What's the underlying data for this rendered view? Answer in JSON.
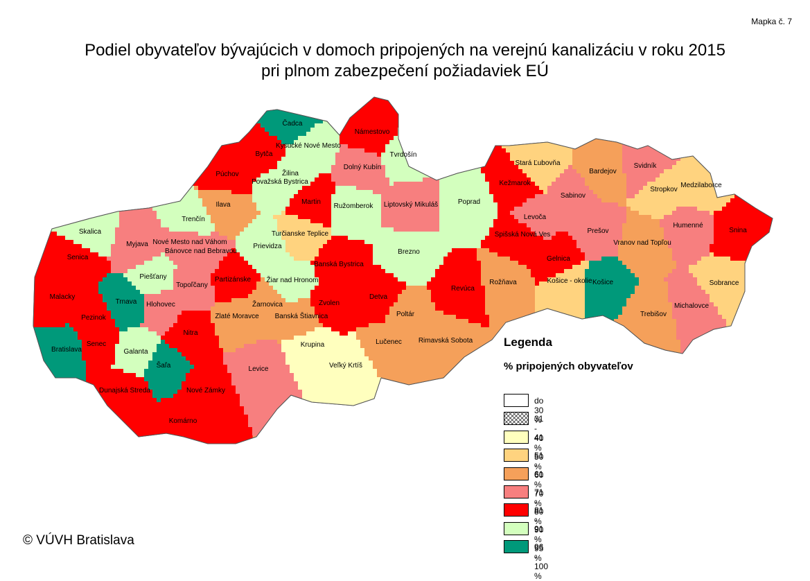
{
  "map_label": "Mapka č. 7",
  "title_line1": "Podiel obyvateľov bývajúcich v domoch pripojených na verejnú kanalizáciu v roku 2015",
  "title_line2": "pri plnom zabezpečení požiadaviek EÚ",
  "legend": {
    "title": "Legenda",
    "subtitle": "% pripojených obyvateľov",
    "items": [
      {
        "label": "do 30 %",
        "color": "#ffffff"
      },
      {
        "label": "31 - 40 %",
        "color": "hatch"
      },
      {
        "label": "41 - 50 %",
        "color": "#ffffbe"
      },
      {
        "label": "51 - 60 %",
        "color": "#ffd37f"
      },
      {
        "label": "61 - 70 %",
        "color": "#f5a05a"
      },
      {
        "label": "71 - 80 %",
        "color": "#f77f7f"
      },
      {
        "label": "81 - 90 %",
        "color": "#ff0000"
      },
      {
        "label": "91 - 95 %",
        "color": "#d3ffbe"
      },
      {
        "label": "96 - 100 %",
        "color": "#00997a"
      }
    ]
  },
  "copyright": "© VÚVH Bratislava",
  "districts": [
    {
      "name": "Čadca",
      "cls": 8
    },
    {
      "name": "Námestovo",
      "cls": 6
    },
    {
      "name": "Kysucké Nové Mesto",
      "cls": 7
    },
    {
      "name": "Bytča",
      "cls": 6
    },
    {
      "name": "Tvrdošín",
      "cls": 7
    },
    {
      "name": "Dolný Kubín",
      "cls": 5
    },
    {
      "name": "Púchov",
      "cls": 6
    },
    {
      "name": "Žilina",
      "cls": 7
    },
    {
      "name": "Považská Bystrica",
      "cls": 7
    },
    {
      "name": "Ilava",
      "cls": 4
    },
    {
      "name": "Martin",
      "cls": 6
    },
    {
      "name": "Ružomberok",
      "cls": 7
    },
    {
      "name": "Liptovský Mikuláš",
      "cls": 5
    },
    {
      "name": "Poprad",
      "cls": 7
    },
    {
      "name": "Stará Ľubovňa",
      "cls": 3
    },
    {
      "name": "Kežmarok",
      "cls": 6
    },
    {
      "name": "Bardejov",
      "cls": 4
    },
    {
      "name": "Svidník",
      "cls": 5
    },
    {
      "name": "Stropkov",
      "cls": 3
    },
    {
      "name": "Medzilaborce",
      "cls": 3
    },
    {
      "name": "Sabinov",
      "cls": 5
    },
    {
      "name": "Levoča",
      "cls": 5
    },
    {
      "name": "Prešov",
      "cls": 5
    },
    {
      "name": "Humenné",
      "cls": 5
    },
    {
      "name": "Snina",
      "cls": 6
    },
    {
      "name": "Trenčín",
      "cls": 7
    },
    {
      "name": "Skalica",
      "cls": 7
    },
    {
      "name": "Myjava",
      "cls": 5
    },
    {
      "name": "Nové Mesto nad Váhom",
      "cls": 5
    },
    {
      "name": "Bánovce nad Bebravou",
      "cls": 5
    },
    {
      "name": "Turčianske Teplice",
      "cls": 3
    },
    {
      "name": "Prievidza",
      "cls": 7
    },
    {
      "name": "Brezno",
      "cls": 7
    },
    {
      "name": "Spišská Nová Ves",
      "cls": 6
    },
    {
      "name": "Gelnica",
      "cls": 6
    },
    {
      "name": "Vranov nad Topľou",
      "cls": 4
    },
    {
      "name": "Senica",
      "cls": 6
    },
    {
      "name": "Piešťany",
      "cls": 7
    },
    {
      "name": "Topoľčany",
      "cls": 5
    },
    {
      "name": "Partizánske",
      "cls": 6
    },
    {
      "name": "Žiar nad Hronom",
      "cls": 7
    },
    {
      "name": "Banská Bystrica",
      "cls": 6
    },
    {
      "name": "Revúca",
      "cls": 6
    },
    {
      "name": "Rožňava",
      "cls": 4
    },
    {
      "name": "Košice - okolie",
      "cls": 3
    },
    {
      "name": "Košice",
      "cls": 8
    },
    {
      "name": "Sobrance",
      "cls": 3
    },
    {
      "name": "Malacky",
      "cls": 6
    },
    {
      "name": "Trnava",
      "cls": 8
    },
    {
      "name": "Hlohovec",
      "cls": 5
    },
    {
      "name": "Žarnovica",
      "cls": 4
    },
    {
      "name": "Zvolen",
      "cls": 6
    },
    {
      "name": "Detva",
      "cls": 6
    },
    {
      "name": "Poltár",
      "cls": 4
    },
    {
      "name": "Michalovce",
      "cls": 5
    },
    {
      "name": "Pezinok",
      "cls": 6
    },
    {
      "name": "Zlaté Moravce",
      "cls": 4
    },
    {
      "name": "Banská Štiavnica",
      "cls": 4
    },
    {
      "name": "Trebišov",
      "cls": 4
    },
    {
      "name": "Nitra",
      "cls": 6
    },
    {
      "name": "Senec",
      "cls": 6
    },
    {
      "name": "Bratislava",
      "cls": 8
    },
    {
      "name": "Galanta",
      "cls": 7
    },
    {
      "name": "Krupina",
      "cls": 2
    },
    {
      "name": "Lučenec",
      "cls": 4
    },
    {
      "name": "Rimavská Sobota",
      "cls": 4
    },
    {
      "name": "Veľký Krtíš",
      "cls": 2
    },
    {
      "name": "Šaľa",
      "cls": 8
    },
    {
      "name": "Levice",
      "cls": 5
    },
    {
      "name": "Dunajská Streda",
      "cls": 6
    },
    {
      "name": "Nové Zámky",
      "cls": 6
    },
    {
      "name": "Komárno",
      "cls": 6
    }
  ]
}
